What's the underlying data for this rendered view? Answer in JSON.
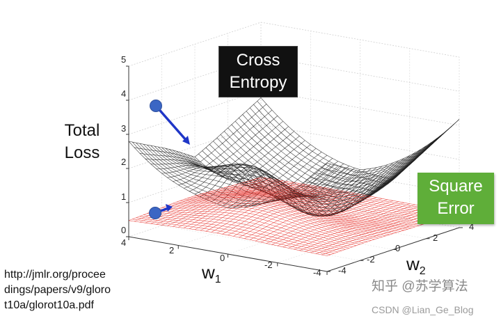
{
  "plot": {
    "y_label_lines": [
      "Total",
      "Loss"
    ],
    "z_ticks": [
      "0",
      "1",
      "2",
      "3",
      "4",
      "5"
    ],
    "w1_ticks": [
      "4",
      "2",
      "0",
      "-2",
      "-4"
    ],
    "w2_ticks": [
      "4",
      "2",
      "0",
      "-2",
      "-4"
    ],
    "w1_label": "w",
    "w1_sub": "1",
    "w2_label": "w",
    "w2_sub": "2",
    "cross_entropy_lines": [
      "Cross",
      "Entropy"
    ],
    "square_error_lines": [
      "Square",
      "Error"
    ],
    "colors": {
      "cross_entropy_mesh": "#1a1a1a",
      "square_error_mesh": "#e8302a",
      "arrow": "#1f36c7",
      "ce_box": "#111111",
      "se_box": "#5fae39"
    }
  },
  "citation_lines": [
    "http://jmlr.org/procee",
    "dings/papers/v9/gloro",
    "t10a/glorot10a.pdf"
  ],
  "watermark": {
    "main": "知乎 @苏学算法",
    "sub": "CSDN @Lian_Ge_Blog"
  }
}
